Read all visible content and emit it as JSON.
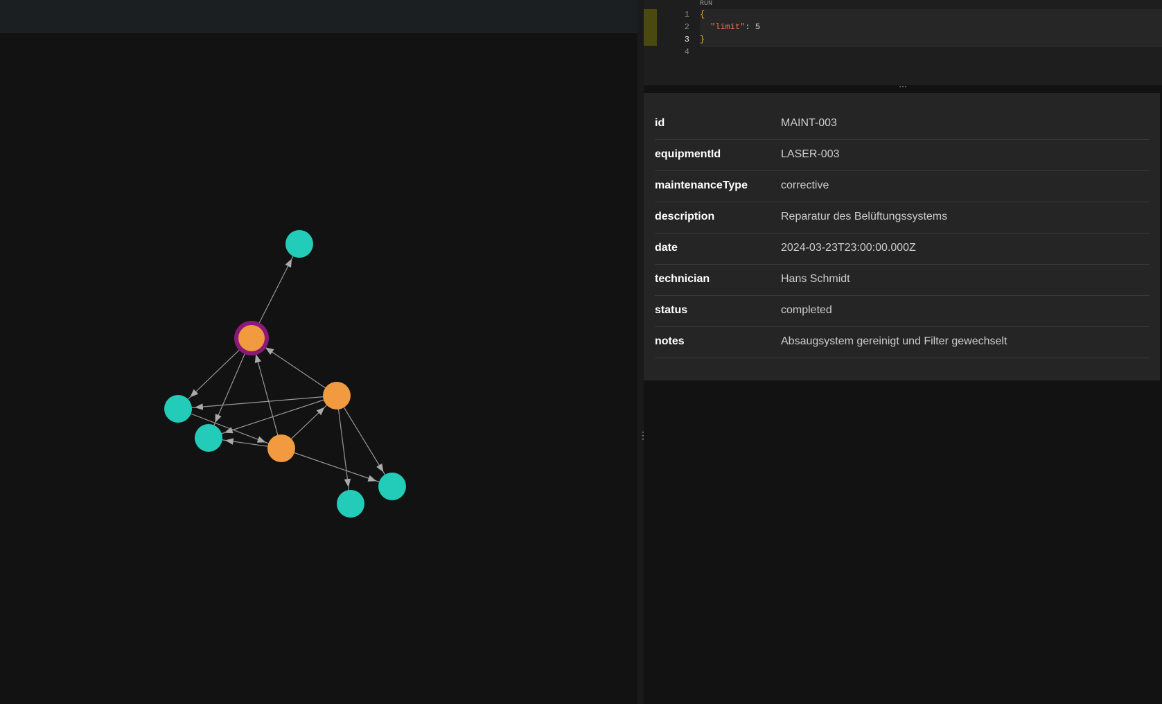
{
  "editor": {
    "run_label": "RUN",
    "line_numbers": [
      "1",
      "2",
      "3",
      "4"
    ],
    "code": {
      "open": "{",
      "key": "\"limit\"",
      "colon": ":",
      "value": 5,
      "close": "}"
    }
  },
  "properties": {
    "rows": [
      [
        "id",
        "MAINT-003"
      ],
      [
        "equipmentId",
        "LASER-003"
      ],
      [
        "maintenanceType",
        "corrective"
      ],
      [
        "description",
        "Reparatur des Belüftungssystems"
      ],
      [
        "date",
        "2024-03-23T23:00:00.000Z"
      ],
      [
        "technician",
        "Hans Schmidt"
      ],
      [
        "status",
        "completed"
      ],
      [
        "notes",
        "Absaugsystem gereinigt und Filter gewechselt"
      ]
    ]
  }
}
